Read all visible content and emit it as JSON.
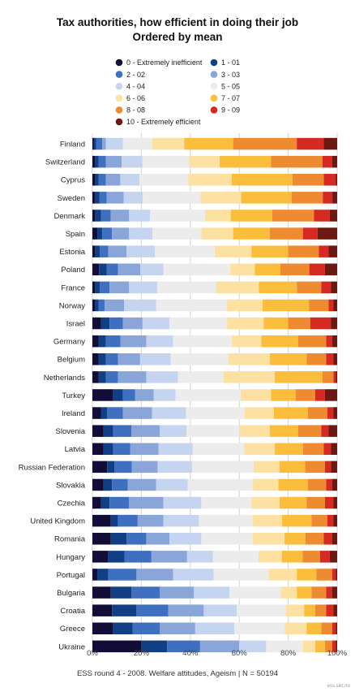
{
  "chart_data": {
    "type": "bar",
    "orientation": "horizontal",
    "stacked": "percent",
    "title": "Tax authorities, how efficient in doing their job",
    "subtitle": "Ordered by mean",
    "footer": "ESS round 4 - 2008. Welfare attitudes, Ageism | N = 50194",
    "credit": "ess.sikt.no",
    "xlim": [
      0,
      100
    ],
    "x_ticks": [
      "0%",
      "20%",
      "40%",
      "60%",
      "80%",
      "100%"
    ],
    "grid": true,
    "legend_position": "top",
    "series": [
      {
        "name": "0 - Extremely inefficient",
        "color": "#120d36"
      },
      {
        "name": "1 - 01",
        "color": "#123f84"
      },
      {
        "name": "2 - 02",
        "color": "#3f6fbf"
      },
      {
        "name": "3 - 03",
        "color": "#8aa5d8"
      },
      {
        "name": "4 - 04",
        "color": "#c6d5ef"
      },
      {
        "name": "5 - 05",
        "color": "#ececec"
      },
      {
        "name": "6 - 06",
        "color": "#fde1a2"
      },
      {
        "name": "7 - 07",
        "color": "#fbbe3c"
      },
      {
        "name": "8 - 08",
        "color": "#ee8a30"
      },
      {
        "name": "9 - 09",
        "color": "#d42a22"
      },
      {
        "name": "10 - Extremely efficient",
        "color": "#6a1a12"
      }
    ],
    "categories": [
      "Finland",
      "Switzerland",
      "Cyprus",
      "Sweden",
      "Denmark",
      "Spain",
      "Estonia",
      "Poland",
      "France",
      "Norway",
      "Israel",
      "Germany",
      "Belgium",
      "Netherlands",
      "Turkey",
      "Ireland",
      "Slovenia",
      "Latvia",
      "Russian Federation",
      "Slovakia",
      "Czechia",
      "United Kingdom",
      "Romania",
      "Hungary",
      "Portugal",
      "Bulgaria",
      "Croatia",
      "Greece",
      "Ukraine"
    ],
    "values": [
      [
        0.5,
        1,
        2.5,
        1.5,
        7,
        12,
        13,
        20,
        26,
        11,
        5.5
      ],
      [
        1,
        1.5,
        3,
        6.5,
        8.5,
        19,
        12.5,
        21,
        21,
        4,
        2
      ],
      [
        1,
        1.5,
        3,
        6,
        8,
        20,
        18,
        25,
        13,
        5,
        0.5
      ],
      [
        1,
        2,
        3,
        7,
        8,
        24,
        17,
        21,
        13,
        4,
        2
      ],
      [
        1,
        2.5,
        4,
        7.5,
        8.5,
        22.5,
        10.5,
        17,
        17,
        6.5,
        3
      ],
      [
        2,
        2,
        4,
        7,
        9.5,
        20,
        13,
        15,
        13.5,
        6,
        8
      ],
      [
        1,
        2,
        3.5,
        7.5,
        11.5,
        24.5,
        15,
        15,
        12.5,
        4,
        3.5
      ],
      [
        3,
        3.5,
        5,
        10,
        10.5,
        30,
        11,
        11.5,
        13,
        7,
        5.5
      ],
      [
        1,
        2,
        4,
        8,
        11.5,
        24,
        17.5,
        15.5,
        10,
        4,
        2.5
      ],
      [
        1,
        1.5,
        2.5,
        8,
        13,
        29,
        14.5,
        19,
        8,
        2,
        1.5
      ],
      [
        3.5,
        3.5,
        5.5,
        8,
        11,
        23.5,
        15,
        10,
        9,
        8.5,
        2.5
      ],
      [
        2.5,
        3,
        6,
        10.5,
        11,
        24,
        12,
        15,
        11.5,
        2.5,
        2
      ],
      [
        2.5,
        3,
        5,
        9,
        12.5,
        23.5,
        17,
        15,
        8,
        3,
        1.5
      ],
      [
        2.5,
        3,
        5,
        11.5,
        13,
        18.5,
        21,
        19.5,
        4.5,
        1,
        0.5
      ],
      [
        8.5,
        4,
        5,
        7.5,
        9,
        26.5,
        12.5,
        10,
        8,
        4,
        5
      ],
      [
        3.5,
        2.5,
        6.5,
        12,
        14,
        24,
        12,
        14,
        8,
        2.5,
        1.5
      ],
      [
        4.5,
        4,
        7.5,
        11.5,
        11,
        21.5,
        12.5,
        11.5,
        9.5,
        3,
        3.5
      ],
      [
        4.5,
        4,
        7,
        11.5,
        14,
        21,
        12.5,
        11.5,
        8.5,
        3,
        2.5
      ],
      [
        6,
        3,
        7,
        10.5,
        14,
        25,
        10.5,
        10.5,
        8,
        2.5,
        2.5
      ],
      [
        4.5,
        3.5,
        6.5,
        11.5,
        13,
        26.5,
        10.5,
        12,
        7.5,
        2.5,
        2
      ],
      [
        3.5,
        3.5,
        8,
        14,
        15.5,
        20.5,
        11.5,
        11,
        7.5,
        3.5,
        1.5
      ],
      [
        7.5,
        3,
        8,
        10.5,
        14.5,
        22,
        12,
        12,
        6.5,
        2.5,
        1.5
      ],
      [
        7.5,
        6.5,
        8,
        9.5,
        13,
        21,
        13,
        8.5,
        7.5,
        3.5,
        2
      ],
      [
        6.5,
        6.5,
        11,
        14.5,
        10.5,
        18.5,
        9.5,
        8.5,
        7,
        4,
        3
      ],
      [
        2,
        4.5,
        11.5,
        15,
        16.5,
        22.5,
        11.5,
        8,
        6.5,
        1.5,
        0.5
      ],
      [
        7.5,
        8.5,
        11.5,
        14,
        14.5,
        21,
        6.5,
        6,
        6,
        2.5,
        2
      ],
      [
        8,
        10,
        13,
        14.5,
        13.5,
        20,
        7.5,
        4.5,
        4.5,
        3,
        1.5
      ],
      [
        8.5,
        8,
        11,
        14.5,
        16,
        20.5,
        9,
        6,
        4.5,
        1.5,
        0.5
      ],
      [
        20,
        10.5,
        13.5,
        16,
        11,
        15,
        5,
        4,
        3,
        1.5,
        0.5
      ]
    ]
  }
}
